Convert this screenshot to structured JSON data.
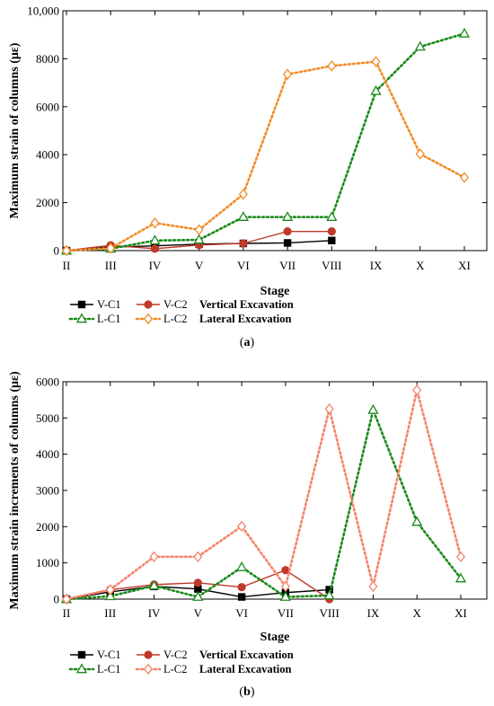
{
  "figure": {
    "captions": [
      {
        "open": "(",
        "letter": "a",
        "close": ")"
      },
      {
        "open": "(",
        "letter": "b",
        "close": ")"
      }
    ]
  },
  "chart_data": [
    {
      "type": "line",
      "categories": [
        "II",
        "III",
        "IV",
        "V",
        "VI",
        "VII",
        "VIII",
        "IX",
        "X",
        "XI"
      ],
      "xlabel": "Stage",
      "ylabel": "Maximum strain of columns (με)",
      "ylim": [
        0,
        10000
      ],
      "yticks": [
        "0",
        "2000",
        "4000",
        "6000",
        "8000",
        "10,000"
      ],
      "ytick_values": [
        0,
        2000,
        4000,
        6000,
        8000,
        10000
      ],
      "legend_groups": [
        "Vertical Excavation",
        "Lateral Excavation"
      ],
      "series": [
        {
          "name": "V-C1",
          "color": "#000000",
          "marker": "square",
          "dash": "solid",
          "values": [
            0,
            150,
            200,
            270,
            300,
            320,
            420,
            null,
            null,
            null
          ]
        },
        {
          "name": "V-C2",
          "color": "#c0392b",
          "marker": "circle",
          "dash": "solid",
          "values": [
            0,
            220,
            80,
            230,
            300,
            800,
            800,
            null,
            null,
            null
          ]
        },
        {
          "name": "L-C1",
          "color": "#1a8a1a",
          "marker": "triangle",
          "dash": "dotted",
          "values": [
            0,
            80,
            420,
            450,
            1400,
            1400,
            1400,
            6650,
            8500,
            9050
          ]
        },
        {
          "name": "L-C2",
          "color": "#f28c28",
          "marker": "diamond",
          "dash": "dotted",
          "values": [
            0,
            100,
            1150,
            870,
            2350,
            7350,
            7700,
            7880,
            4030,
            3050
          ]
        }
      ]
    },
    {
      "type": "line",
      "categories": [
        "II",
        "III",
        "IV",
        "V",
        "VI",
        "VII",
        "VIII",
        "IX",
        "X",
        "XI"
      ],
      "xlabel": "Stage",
      "ylabel": "Maximum strain increments of columns (με)",
      "ylim": [
        0,
        6000
      ],
      "yticks": [
        "0",
        "1000",
        "2000",
        "3000",
        "4000",
        "5000",
        "6000"
      ],
      "ytick_values": [
        0,
        1000,
        2000,
        3000,
        4000,
        5000,
        6000
      ],
      "legend_groups": [
        "Vertical Excavation",
        "Lateral Excavation"
      ],
      "series": [
        {
          "name": "V-C1",
          "color": "#000000",
          "marker": "square",
          "dash": "solid",
          "values": [
            0,
            200,
            350,
            280,
            60,
            180,
            260,
            null,
            null,
            null
          ]
        },
        {
          "name": "V-C2",
          "color": "#c0392b",
          "marker": "circle",
          "dash": "solid",
          "values": [
            0,
            260,
            400,
            450,
            330,
            800,
            0,
            null,
            null,
            null
          ]
        },
        {
          "name": "L-C1",
          "color": "#1a8a1a",
          "marker": "triangle",
          "dash": "dotted",
          "values": [
            0,
            80,
            370,
            60,
            880,
            60,
            100,
            5220,
            2130,
            570
          ]
        },
        {
          "name": "L-C2",
          "color": "#f4846a",
          "marker": "diamond",
          "dash": "dotted",
          "values": [
            0,
            260,
            1170,
            1170,
            2010,
            350,
            5250,
            350,
            5770,
            1170
          ]
        }
      ]
    }
  ]
}
